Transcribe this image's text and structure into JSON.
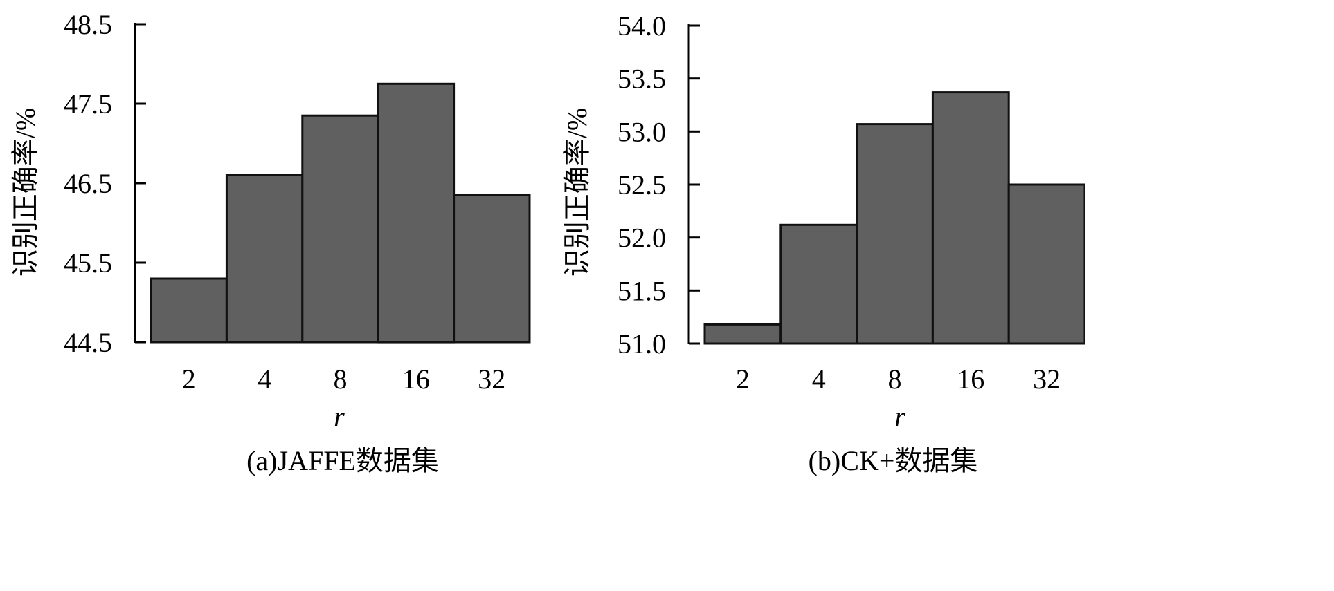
{
  "colors": {
    "bar_fill": "#606060",
    "bar_stroke": "#111111",
    "axis": "#000000"
  },
  "chart_data": [
    {
      "type": "bar",
      "title": "(a)JAFFE数据集",
      "xlabel": "r",
      "ylabel": "识别正确率/%",
      "categories": [
        "2",
        "4",
        "8",
        "16",
        "32"
      ],
      "values": [
        45.3,
        46.6,
        47.35,
        47.75,
        46.35
      ],
      "ylim": [
        44.5,
        48.5
      ],
      "yticks": [
        44.5,
        45.5,
        46.5,
        47.5,
        48.5
      ],
      "ytick_labels": [
        "44.5",
        "45.5",
        "46.5",
        "47.5",
        "48.5"
      ],
      "grid": false,
      "legend": "none"
    },
    {
      "type": "bar",
      "title": "(b)CK+数据集",
      "xlabel": "r",
      "ylabel": "识别正确率/%",
      "categories": [
        "2",
        "4",
        "8",
        "16",
        "32"
      ],
      "values": [
        51.18,
        52.12,
        53.07,
        53.37,
        52.5
      ],
      "ylim": [
        51.0,
        54.0
      ],
      "yticks": [
        51.0,
        51.5,
        52.0,
        52.5,
        53.0,
        53.5,
        54.0
      ],
      "ytick_labels": [
        "51.0",
        "51.5",
        "52.0",
        "52.5",
        "53.0",
        "53.5",
        "54.0"
      ],
      "grid": false,
      "legend": "none"
    }
  ]
}
